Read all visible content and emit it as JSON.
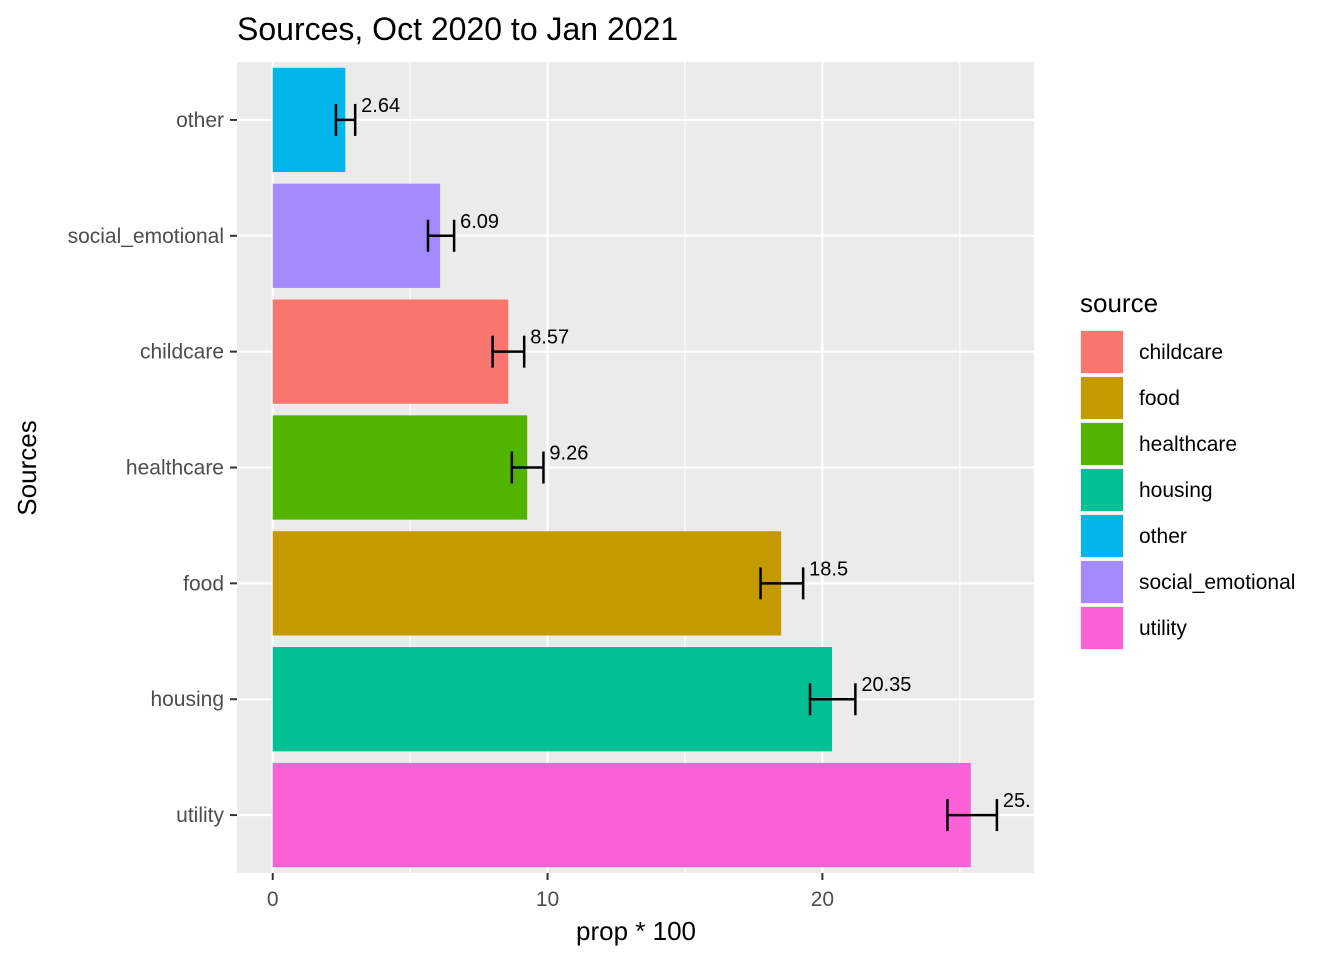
{
  "chart_data": {
    "type": "bar",
    "orientation": "horizontal",
    "title": "Sources, Oct 2020 to Jan 2021",
    "xlabel": "prop * 100",
    "ylabel": "Sources",
    "xlim": [
      -1.3,
      27.7
    ],
    "x_ticks": [
      "0",
      "10",
      "20"
    ],
    "x_tick_values": [
      0,
      10,
      20
    ],
    "grid": true,
    "legend_position": "right",
    "legend_title": "source",
    "categories": [
      "other",
      "social_emotional",
      "childcare",
      "healthcare",
      "food",
      "housing",
      "utility"
    ],
    "values": [
      2.64,
      6.09,
      8.57,
      9.26,
      18.5,
      20.35,
      25.4
    ],
    "error_low": [
      2.3,
      5.65,
      8.0,
      8.7,
      17.75,
      19.55,
      24.55
    ],
    "error_high": [
      3.0,
      6.6,
      9.15,
      9.85,
      19.3,
      21.2,
      26.35
    ],
    "data_labels": [
      "2.64",
      "6.09",
      "8.57",
      "9.26",
      "18.5",
      "20.35",
      "25."
    ],
    "colors": {
      "childcare": "#F8766D",
      "food": "#C49A00",
      "healthcare": "#53B400",
      "housing": "#00C094",
      "other": "#00B6EB",
      "social_emotional": "#A58AFF",
      "utility": "#FB61D7"
    },
    "legend_entries": [
      "childcare",
      "food",
      "healthcare",
      "housing",
      "other",
      "social_emotional",
      "utility"
    ]
  }
}
